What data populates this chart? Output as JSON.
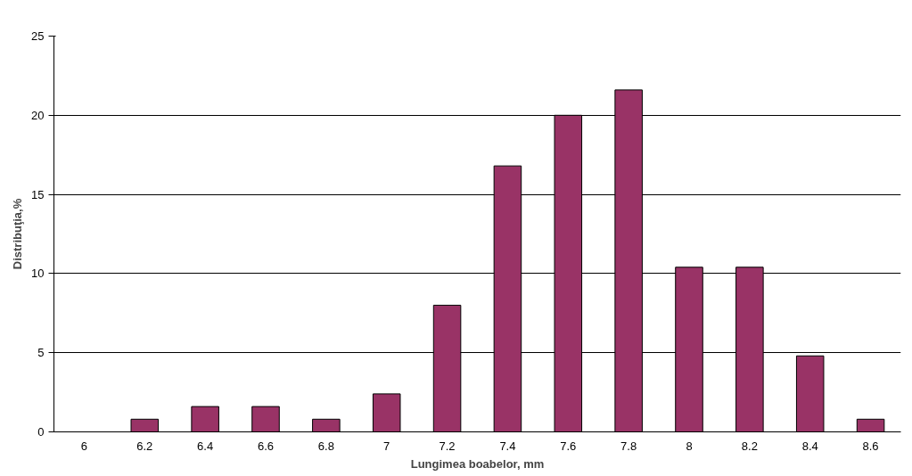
{
  "chart_data": {
    "type": "bar",
    "xlabel": "Lungimea boabelor, mm",
    "ylabel": "Distribuţia,%",
    "categories": [
      "6",
      "6.2",
      "6.4",
      "6.6",
      "6.8",
      "7",
      "7.2",
      "7.4",
      "7.6",
      "7.8",
      "8",
      "8.2",
      "8.4",
      "8.6"
    ],
    "values": [
      0,
      0.8,
      1.6,
      1.6,
      0.8,
      2.4,
      8,
      16.8,
      20,
      21.6,
      10.4,
      10.4,
      4.8,
      0.8
    ],
    "color": "#993366",
    "ylim": [
      0,
      25
    ],
    "yticks": [
      0,
      5,
      10,
      15,
      20,
      25
    ],
    "grid": "y"
  }
}
